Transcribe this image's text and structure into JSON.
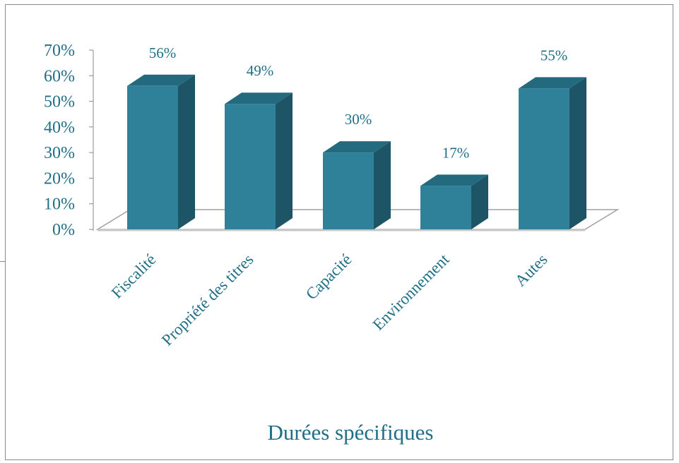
{
  "chart_data": {
    "type": "bar",
    "title": "Durées spécifiques",
    "categories": [
      "Fiscalité",
      "Propriété des titres",
      "Capacité",
      "Environnement",
      "Autes"
    ],
    "values": [
      56,
      49,
      30,
      17,
      55
    ],
    "data_labels": [
      "56%",
      "49%",
      "30%",
      "17%",
      "55%"
    ],
    "ylim": [
      0,
      70
    ],
    "yticks": [
      {
        "value": 0,
        "label": "0%"
      },
      {
        "value": 10,
        "label": "10%"
      },
      {
        "value": 20,
        "label": "20%"
      },
      {
        "value": 30,
        "label": "30%"
      },
      {
        "value": 40,
        "label": "40%"
      },
      {
        "value": 50,
        "label": "50%"
      },
      {
        "value": 60,
        "label": "60%"
      },
      {
        "value": 70,
        "label": "70%"
      }
    ],
    "xlabel": "",
    "ylabel": "",
    "grid": false,
    "legend": "none",
    "style": "3d-column"
  },
  "colors": {
    "bar_front": "#2e8198",
    "bar_side": "#1d5566",
    "bar_top": "#246a7e",
    "text": "#1f6f86",
    "floor": "#ffffff",
    "floor_edge": "#a0a0a0"
  }
}
